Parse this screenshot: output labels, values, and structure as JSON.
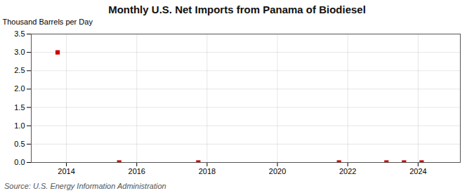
{
  "chart_data": {
    "type": "scatter",
    "title": "Monthly U.S. Net Imports from Panama of Biodiesel",
    "ylabel": "Thousand Barrels per Day",
    "annotations": [
      "Source: U.S. Energy Information Administration"
    ],
    "x": [
      2013.75,
      2015.5,
      2017.75,
      2021.75,
      2023.1,
      2023.6,
      2024.1
    ],
    "values": [
      3.0,
      0.0,
      0.0,
      0.0,
      0.0,
      0.0,
      0.0
    ],
    "color": "#cc0000",
    "marker": "square",
    "xlim": [
      2013.0,
      2025.2
    ],
    "xticks": [
      2014,
      2016,
      2018,
      2020,
      2022,
      2024
    ],
    "ylim": [
      0.0,
      3.5
    ],
    "yticks": [
      {
        "value": 0.0,
        "label": "0.0"
      },
      0.5,
      {
        "value": 1.0,
        "label": "1.0"
      },
      1.5,
      {
        "value": 2.0,
        "label": "2.0"
      },
      2.5,
      {
        "value": 3.0,
        "label": "3.0"
      },
      3.5
    ],
    "grid": true
  }
}
